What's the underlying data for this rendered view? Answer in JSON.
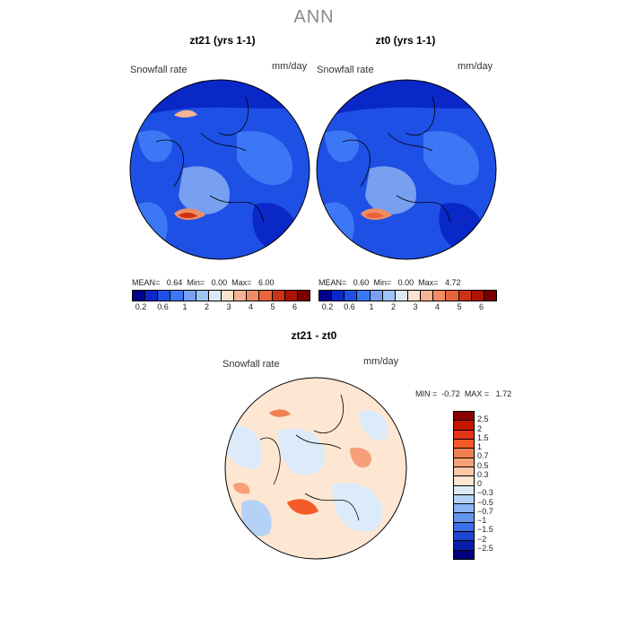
{
  "title": "ANN",
  "units": "mm/day",
  "variable": "Snowfall rate",
  "panels": [
    {
      "title": "zt21 (yrs 1-1)",
      "variable": "Snowfall rate",
      "units": "mm/day",
      "stats": {
        "mean_label": "MEAN=",
        "mean": "0.64",
        "min_label": "Min=",
        "min": "0.00",
        "max_label": "Max=",
        "max": "6.00"
      }
    },
    {
      "title": "zt0 (yrs 1-1)",
      "variable": "Snowfall rate",
      "units": "mm/day",
      "stats": {
        "mean_label": "MEAN=",
        "mean": "0.60",
        "min_label": "Min=",
        "min": "0.00",
        "max_label": "Max=",
        "max": "4.72"
      }
    }
  ],
  "colorbar": {
    "colors": [
      "#00008b",
      "#0a28c8",
      "#1e50e6",
      "#3c78f5",
      "#78a0f0",
      "#a0c3f5",
      "#dce8f8",
      "#fbe3cf",
      "#f5b494",
      "#f08c64",
      "#e6643c",
      "#cd3214",
      "#aa1400",
      "#780000"
    ],
    "ticks": [
      "0.2",
      "0.6",
      "1",
      "2",
      "3",
      "4",
      "5",
      "6"
    ]
  },
  "diff": {
    "title": "zt21 - zt0",
    "variable": "Snowfall rate",
    "units": "mm/day",
    "min_label": "MIN =",
    "min": "-0.72",
    "max_label": "MAX =",
    "max": "1.72",
    "colorbar_colors": [
      "#8b0000",
      "#c81400",
      "#e63214",
      "#f55a28",
      "#f08050",
      "#f5a078",
      "#fac8a8",
      "#fde6d2",
      "#dcebfa",
      "#b4d2f5",
      "#8cb4f0",
      "#6496eb",
      "#3c6ee6",
      "#1e46d2",
      "#0a1eaa",
      "#000080"
    ],
    "ticks": [
      "2.5",
      "2",
      "1.5",
      "1",
      "0.7",
      "0.5",
      "0.3",
      "0",
      "−0.3",
      "−0.5",
      "−0.7",
      "−1",
      "−1.5",
      "−2",
      "−2.5"
    ]
  }
}
